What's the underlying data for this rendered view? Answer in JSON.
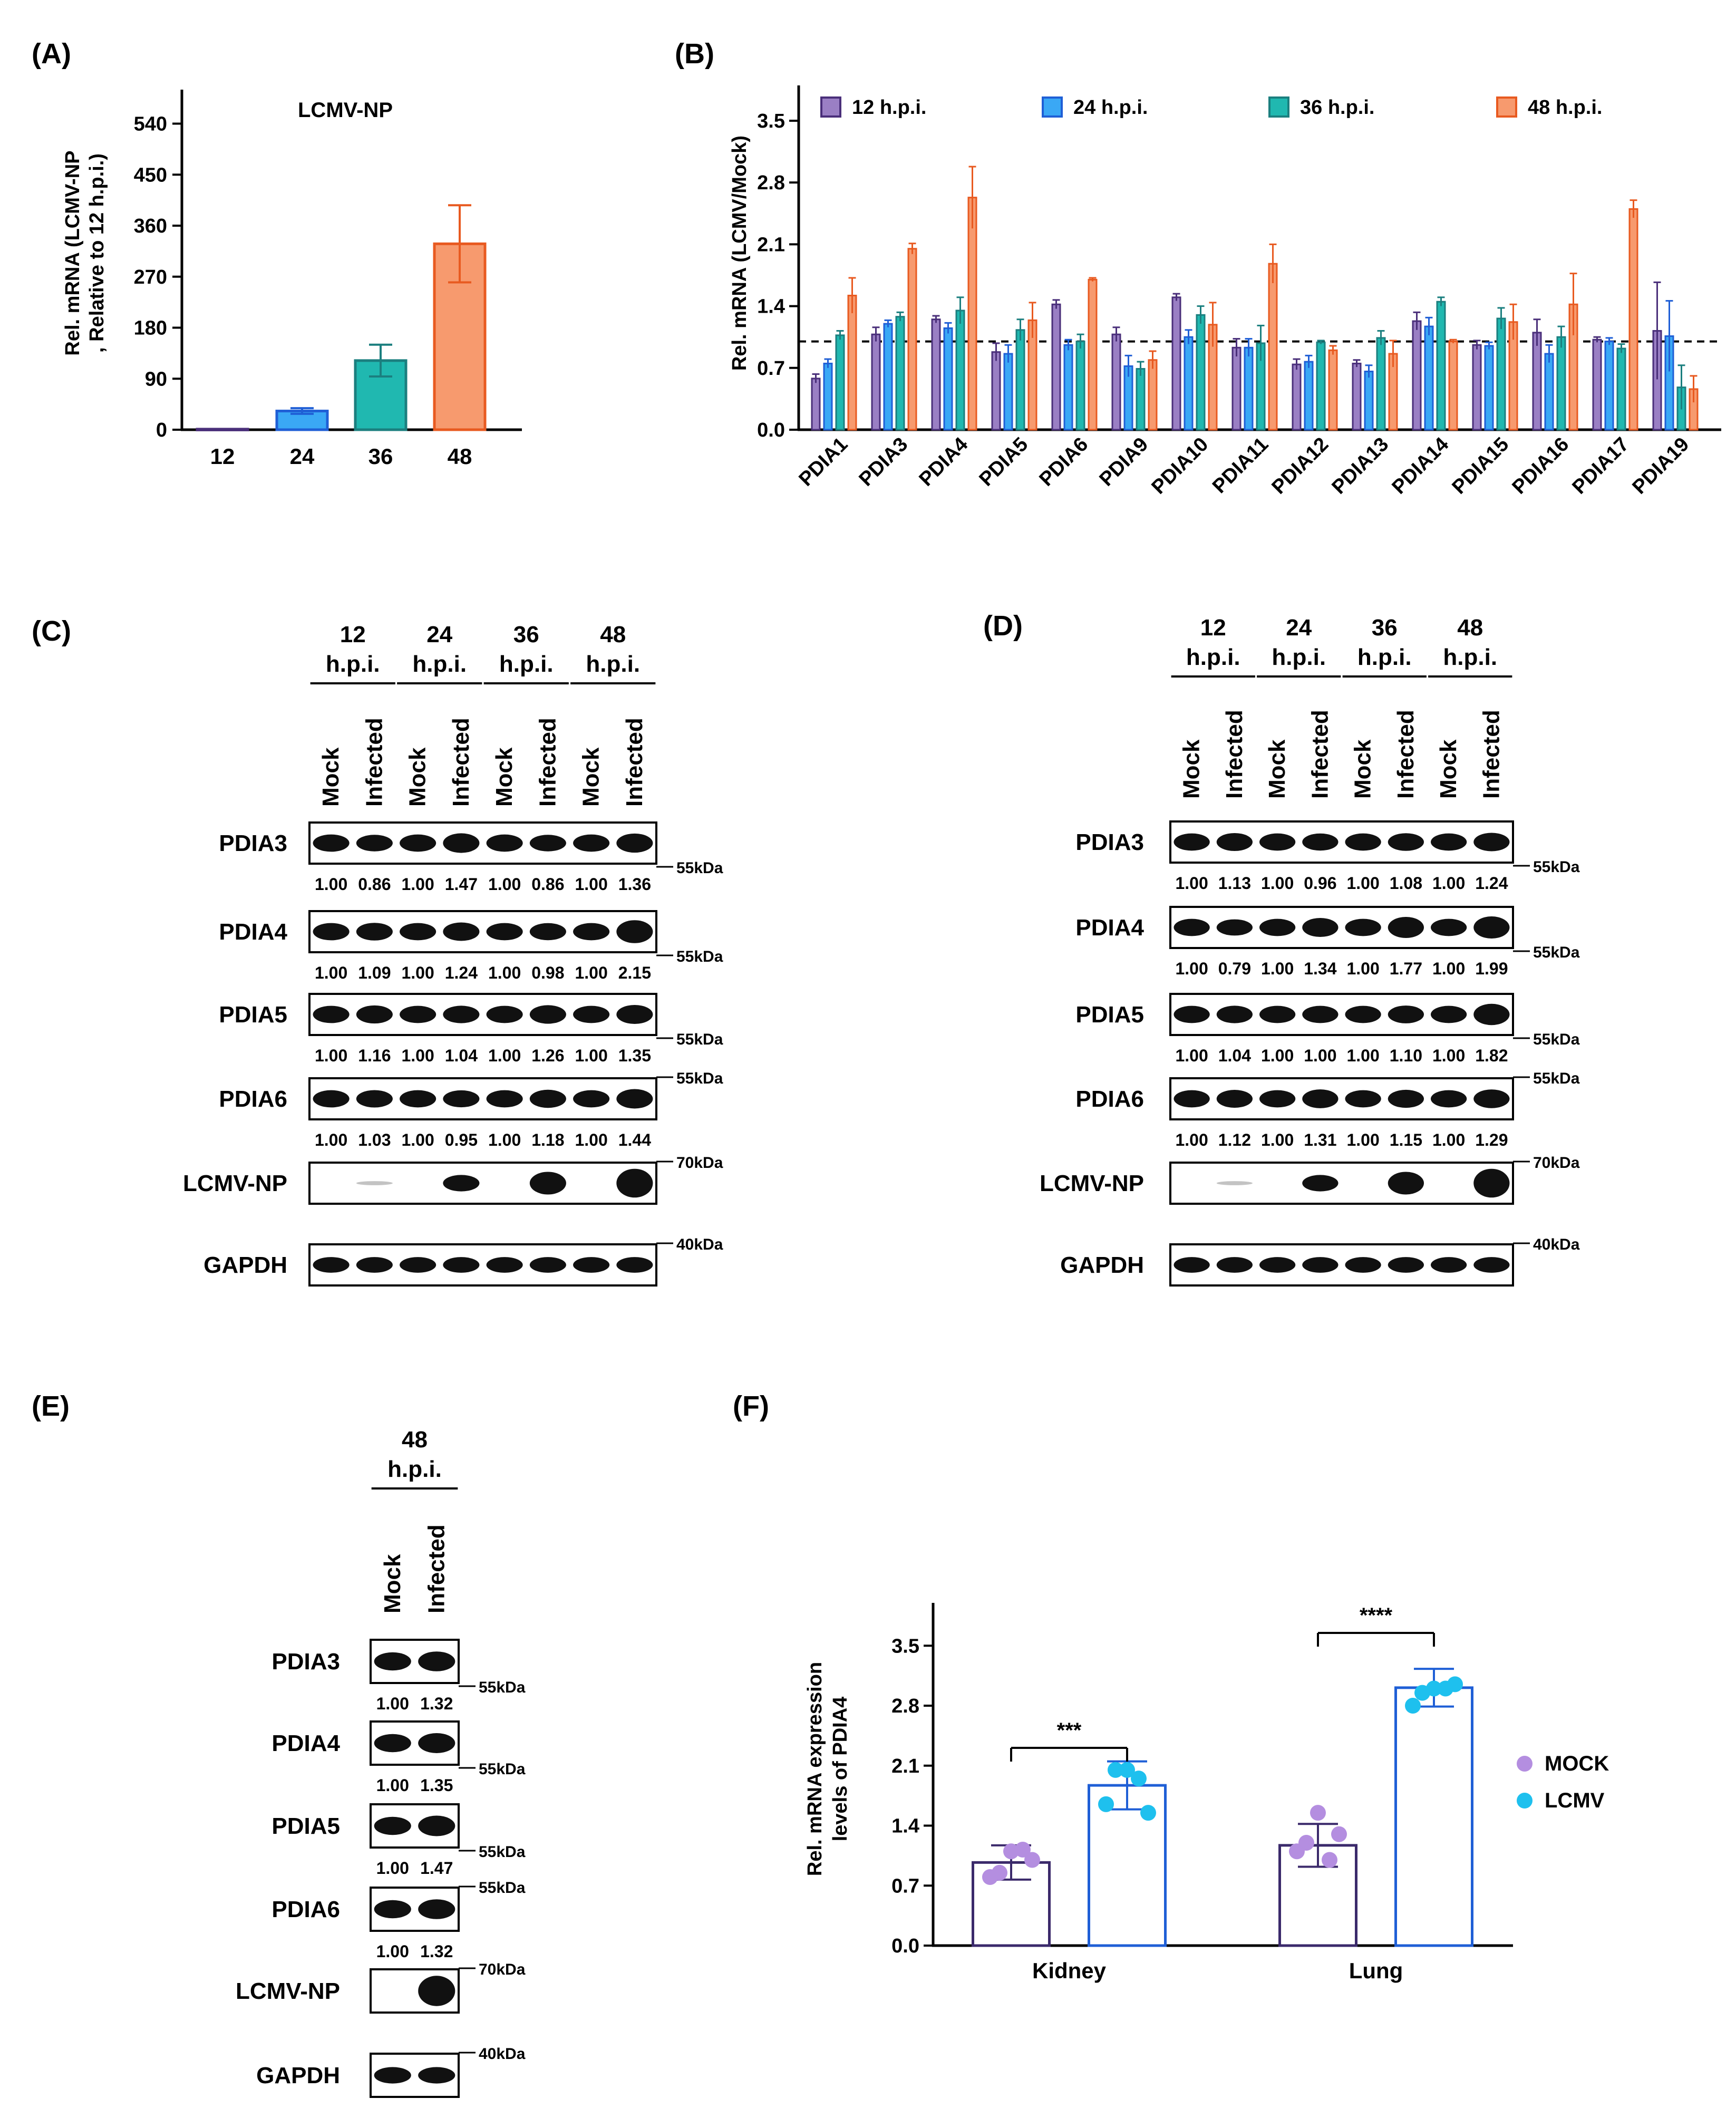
{
  "colors": {
    "h12": "#4a2f7a",
    "h12_fill": "#9a7fc4",
    "h24": "#1f5fd6",
    "h24_fill": "#3aa8f5",
    "h36": "#1b7f7f",
    "h36_fill": "#20b8b0",
    "h48": "#e85a20",
    "h48_fill": "#f79a6e",
    "mock": "#3b2a6b",
    "mock_dot": "#b48ee0",
    "lcmv": "#1f5fd6",
    "lcmv_dot": "#1ec0ee"
  },
  "chart_data": [
    {
      "panel": "(A)",
      "type": "bar",
      "title": "LCMV-NP",
      "ylabel_line1": "Rel. mRNA (LCMV-NP",
      "ylabel_line2": ", Relative to 12 h.p.i.)",
      "categories": [
        "12",
        "24",
        "36",
        "48"
      ],
      "values": [
        1,
        33,
        122,
        328
      ],
      "errors": [
        0.5,
        5,
        28,
        68
      ],
      "ylim": [
        0,
        600
      ],
      "yticks": [
        "0",
        "90",
        "180",
        "270",
        "360",
        "450",
        "540"
      ]
    },
    {
      "panel": "(B)",
      "type": "bar",
      "ylabel": "Rel. mRNA (LCMV/Mock)",
      "categories": [
        "PDIA1",
        "PDIA3",
        "PDIA4",
        "PDIA5",
        "PDIA6",
        "PDIA9",
        "PDIA10",
        "PDIA11",
        "PDIA12",
        "PDIA13",
        "PDIA14",
        "PDIA15",
        "PDIA16",
        "PDIA17",
        "PDIA19"
      ],
      "series": [
        {
          "name": "12 h.p.i.",
          "values": [
            0.58,
            1.08,
            1.25,
            0.88,
            1.42,
            1.08,
            1.5,
            0.93,
            0.74,
            0.75,
            1.23,
            0.96,
            1.1,
            1.02,
            1.12
          ],
          "errors": [
            0.05,
            0.08,
            0.04,
            0.1,
            0.05,
            0.08,
            0.04,
            0.1,
            0.06,
            0.04,
            0.1,
            0.05,
            0.15,
            0.03,
            0.55
          ]
        },
        {
          "name": "24 h.p.i.",
          "values": [
            0.75,
            1.2,
            1.15,
            0.86,
            0.96,
            0.72,
            1.05,
            0.93,
            0.77,
            0.66,
            1.17,
            0.95,
            0.86,
            1.0,
            1.06
          ],
          "errors": [
            0.05,
            0.04,
            0.06,
            0.1,
            0.06,
            0.12,
            0.08,
            0.1,
            0.07,
            0.07,
            0.1,
            0.04,
            0.1,
            0.04,
            0.4
          ]
        },
        {
          "name": "36 h.p.i.",
          "values": [
            1.07,
            1.28,
            1.35,
            1.13,
            1.0,
            0.69,
            1.3,
            0.98,
            0.99,
            1.04,
            1.45,
            1.26,
            1.05,
            0.92,
            0.48
          ]
        },
        {
          "name": "48 h.p.i.",
          "values": [
            1.52,
            2.05,
            2.63,
            1.24,
            1.7,
            0.79,
            1.19,
            1.88,
            0.9,
            0.86,
            1.0,
            1.22,
            1.42,
            2.5,
            0.46
          ],
          "errors": [
            0.2,
            0.06,
            0.35,
            0.2,
            0.02,
            0.1,
            0.25,
            0.22,
            0.05,
            0.15,
            0.02,
            0.2,
            0.35,
            0.1,
            0.15
          ]
        }
      ],
      "series_errors36": [
        0.05,
        0.05,
        0.15,
        0.12,
        0.08,
        0.08,
        0.1,
        0.2,
        0.02,
        0.08,
        0.05,
        0.12,
        0.12,
        0.05,
        0.25
      ],
      "reference_line": 1.0,
      "ylim": [
        0,
        3.9
      ],
      "yticks": [
        "0.0",
        "0.7",
        "1.4",
        "2.1",
        "2.8",
        "3.5"
      ]
    },
    {
      "panel": "(F)",
      "type": "bar",
      "ylabel_line1": "Rel. mRNA expression",
      "ylabel_line2": "levels of PDIA4",
      "categories": [
        "Kidney",
        "Lung"
      ],
      "series": [
        {
          "name": "MOCK",
          "values": [
            0.97,
            1.17
          ],
          "errors": [
            0.2,
            0.25
          ],
          "points": [
            [
              0.8,
              0.85,
              1.1,
              1.12,
              1.0
            ],
            [
              1.1,
              1.2,
              1.55,
              1.0,
              1.3
            ]
          ]
        },
        {
          "name": "LCMV",
          "values": [
            1.87,
            3.01
          ],
          "errors": [
            0.28,
            0.22
          ],
          "points": [
            [
              1.65,
              2.05,
              2.05,
              1.95,
              1.55
            ],
            [
              2.8,
              2.95,
              3.0,
              3.0,
              3.05
            ]
          ]
        }
      ],
      "significance": [
        "***",
        "****"
      ],
      "ylim": [
        0,
        4.0
      ],
      "yticks": [
        "0.0",
        "0.7",
        "1.4",
        "2.1",
        "2.8",
        "3.5"
      ]
    }
  ],
  "blots": {
    "C": {
      "label": "(C)",
      "timepoints": [
        "12",
        "24",
        "36",
        "48"
      ],
      "hpi": "h.p.i.",
      "lanes": [
        "Mock",
        "Infected",
        "Mock",
        "Infected",
        "Mock",
        "Infected",
        "Mock",
        "Infected"
      ],
      "rows": [
        {
          "name": "PDIA3",
          "kda": "55kDa",
          "quant": [
            "1.00",
            "0.86",
            "1.00",
            "1.47",
            "1.00",
            "0.86",
            "1.00",
            "1.36"
          ]
        },
        {
          "name": "PDIA4",
          "kda": "55kDa",
          "quant": [
            "1.00",
            "1.09",
            "1.00",
            "1.24",
            "1.00",
            "0.98",
            "1.00",
            "2.15"
          ]
        },
        {
          "name": "PDIA5",
          "kda": "55kDa",
          "quant": [
            "1.00",
            "1.16",
            "1.00",
            "1.04",
            "1.00",
            "1.26",
            "1.00",
            "1.35"
          ]
        },
        {
          "name": "PDIA6",
          "kda": "55kDa",
          "quant": [
            "1.00",
            "1.03",
            "1.00",
            "0.95",
            "1.00",
            "1.18",
            "1.00",
            "1.44"
          ]
        },
        {
          "name": "LCMV-NP",
          "kda": "70kDa",
          "quant": []
        },
        {
          "name": "GAPDH",
          "kda": "40kDa",
          "quant": []
        }
      ]
    },
    "D": {
      "label": "(D)",
      "timepoints": [
        "12",
        "24",
        "36",
        "48"
      ],
      "hpi": "h.p.i.",
      "lanes": [
        "Mock",
        "Infected",
        "Mock",
        "Infected",
        "Mock",
        "Infected",
        "Mock",
        "Infected"
      ],
      "rows": [
        {
          "name": "PDIA3",
          "kda": "55kDa",
          "quant": [
            "1.00",
            "1.13",
            "1.00",
            "0.96",
            "1.00",
            "1.08",
            "1.00",
            "1.24"
          ]
        },
        {
          "name": "PDIA4",
          "kda": "55kDa",
          "quant": [
            "1.00",
            "0.79",
            "1.00",
            "1.34",
            "1.00",
            "1.77",
            "1.00",
            "1.99"
          ]
        },
        {
          "name": "PDIA5",
          "kda": "55kDa",
          "quant": [
            "1.00",
            "1.04",
            "1.00",
            "1.00",
            "1.00",
            "1.10",
            "1.00",
            "1.82"
          ]
        },
        {
          "name": "PDIA6",
          "kda": "55kDa",
          "quant": [
            "1.00",
            "1.12",
            "1.00",
            "1.31",
            "1.00",
            "1.15",
            "1.00",
            "1.29"
          ]
        },
        {
          "name": "LCMV-NP",
          "kda": "70kDa",
          "quant": []
        },
        {
          "name": "GAPDH",
          "kda": "40kDa",
          "quant": []
        }
      ]
    },
    "E": {
      "label": "(E)",
      "timepoints": [
        "48"
      ],
      "hpi": "h.p.i.",
      "lanes": [
        "Mock",
        "Infected"
      ],
      "rows": [
        {
          "name": "PDIA3",
          "kda": "55kDa",
          "quant": [
            "1.00",
            "1.32"
          ]
        },
        {
          "name": "PDIA4",
          "kda": "55kDa",
          "quant": [
            "1.00",
            "1.35"
          ]
        },
        {
          "name": "PDIA5",
          "kda": "55kDa",
          "quant": [
            "1.00",
            "1.47"
          ]
        },
        {
          "name": "PDIA6",
          "kda": "55kDa",
          "quant": [
            "1.00",
            "1.32"
          ]
        },
        {
          "name": "LCMV-NP",
          "kda": "70kDa",
          "quant": []
        },
        {
          "name": "GAPDH",
          "kda": "40kDa",
          "quant": []
        }
      ]
    }
  }
}
